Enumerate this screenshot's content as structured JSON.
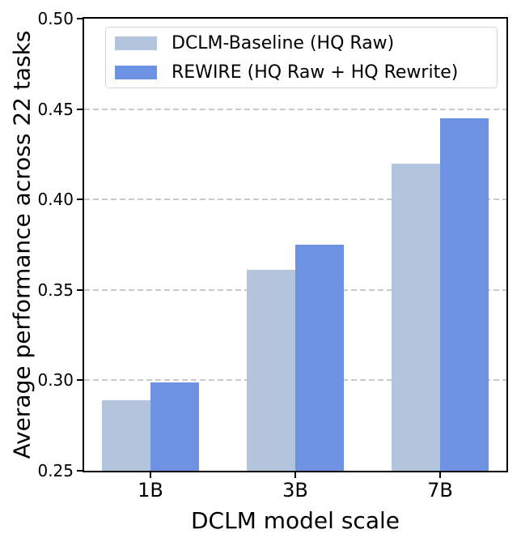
{
  "figure": {
    "background": "#ffffff",
    "axis_color": "#000000"
  },
  "chart_data": {
    "type": "bar",
    "title": "",
    "xlabel": "DCLM model scale",
    "ylabel": "Average performance across 22 tasks",
    "categories": [
      "1B",
      "3B",
      "7B"
    ],
    "series": [
      {
        "name": "DCLM-Baseline (HQ Raw)",
        "color": "#b3c4dd",
        "values": [
          0.289,
          0.361,
          0.42
        ]
      },
      {
        "name": "REWIRE (HQ Raw + HQ Rewrite)",
        "color": "#6e92e2",
        "values": [
          0.299,
          0.375,
          0.445
        ]
      }
    ],
    "ylim": [
      0.25,
      0.5
    ],
    "yticks": [
      0.25,
      0.3,
      0.35,
      0.4,
      0.45,
      0.5
    ],
    "ytick_labels": [
      "0.25",
      "0.30",
      "0.35",
      "0.40",
      "0.45",
      "0.50"
    ],
    "grid": true,
    "grid_color": "#c9c9c9",
    "grid_style": "dashed",
    "legend_position": "upper left"
  }
}
